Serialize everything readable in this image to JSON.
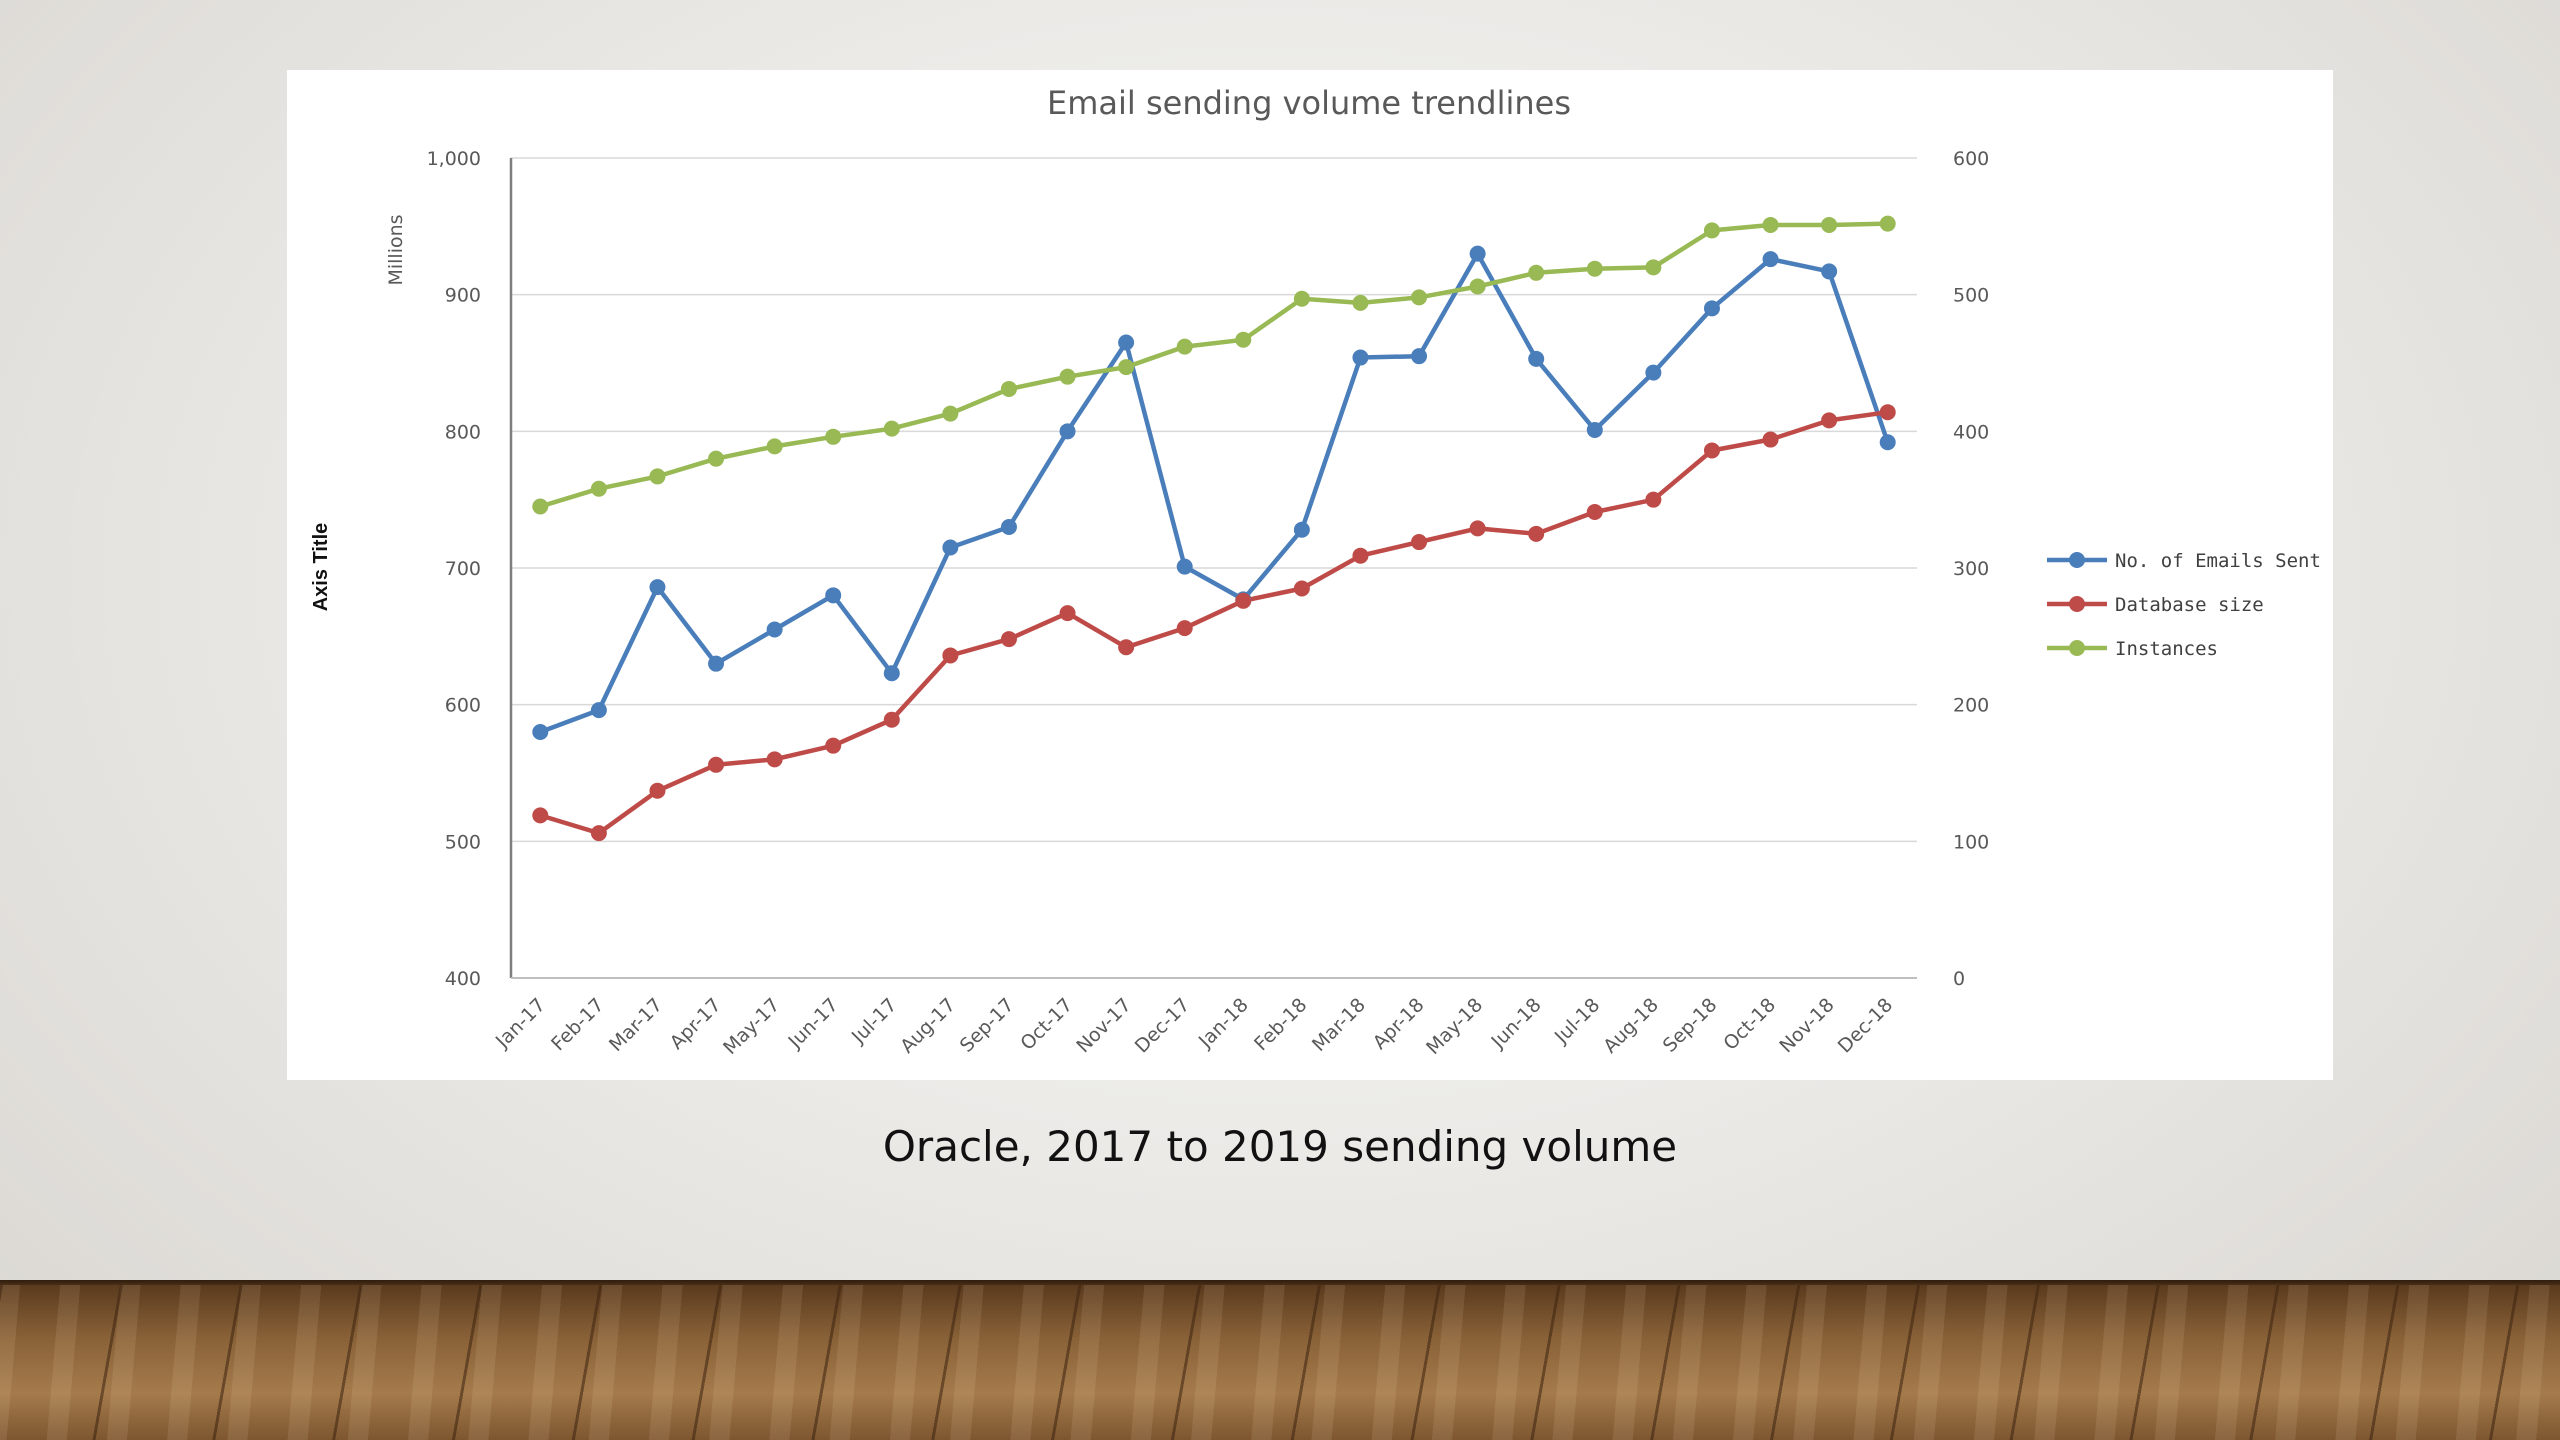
{
  "caption": "Oracle, 2017 to 2019 sending volume",
  "chart_data": {
    "type": "line",
    "title": "Email sending volume trendlines",
    "ylabel": "Axis Title",
    "yunit_label": "Millions",
    "x": [
      "Jan-17",
      "Feb-17",
      "Mar-17",
      "Apr-17",
      "May-17",
      "Jun-17",
      "Jul-17",
      "Aug-17",
      "Sep-17",
      "Oct-17",
      "Nov-17",
      "Dec-17",
      "Jan-18",
      "Feb-18",
      "Mar-18",
      "Apr-18",
      "May-18",
      "Jun-18",
      "Jul-18",
      "Aug-18",
      "Sep-18",
      "Oct-18",
      "Nov-18",
      "Dec-18"
    ],
    "ylim": [
      400,
      1000
    ],
    "yticks": [
      400,
      500,
      600,
      700,
      800,
      900,
      1000
    ],
    "ytick_labels": [
      "400",
      "500",
      "600",
      "700",
      "800",
      "900",
      "1,000"
    ],
    "y2lim": [
      0,
      600
    ],
    "y2ticks": [
      0,
      100,
      200,
      300,
      400,
      500,
      600
    ],
    "y2tick_labels": [
      "0",
      "100",
      "200",
      "300",
      "400",
      "500",
      "600"
    ],
    "grid": true,
    "legend_position": "right",
    "series": [
      {
        "name": "No. of Emails Sent",
        "color": "#4a7ebb",
        "axis": "left",
        "values": [
          580,
          596,
          686,
          630,
          655,
          680,
          623,
          715,
          730,
          800,
          865,
          701,
          677,
          728,
          854,
          855,
          930,
          853,
          801,
          843,
          890,
          926,
          917,
          792
        ]
      },
      {
        "name": "Database size",
        "color": "#be4b48",
        "axis": "right",
        "values": [
          119,
          106,
          137,
          156,
          160,
          170,
          189,
          236,
          248,
          267,
          242,
          256,
          276,
          285,
          309,
          319,
          329,
          325,
          341,
          350,
          386,
          394,
          408,
          414
        ]
      },
      {
        "name": "Instances",
        "color": "#98b954",
        "axis": "right",
        "values": [
          345,
          358,
          367,
          380,
          389,
          396,
          402,
          413,
          431,
          440,
          447,
          462,
          467,
          497,
          494,
          498,
          506,
          516,
          519,
          520,
          547,
          551,
          551,
          552
        ]
      }
    ]
  }
}
